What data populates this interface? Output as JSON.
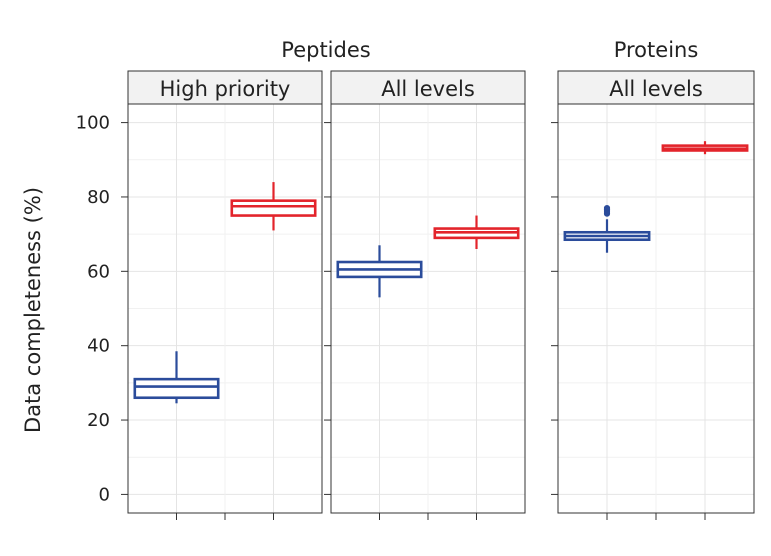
{
  "chart_data": {
    "type": "boxplot",
    "ylabel": "Data completeness (%)",
    "ylim": [
      -5,
      105
    ],
    "yticks": [
      0,
      20,
      40,
      60,
      80,
      100
    ],
    "grid": true,
    "colors": {
      "blue": "#2b4c9b",
      "red": "#e3242b"
    },
    "groups": [
      {
        "title": "Peptides",
        "panels": [
          "High priority",
          "All levels"
        ]
      },
      {
        "title": "Proteins",
        "panels": [
          "All levels"
        ]
      }
    ],
    "panels": [
      {
        "strip": "High priority",
        "boxes": [
          {
            "color": "blue",
            "min": 24.5,
            "q1": 26,
            "median": 29,
            "q3": 31,
            "max": 38.5,
            "outliers": []
          },
          {
            "color": "red",
            "min": 71,
            "q1": 75,
            "median": 77.5,
            "q3": 79,
            "max": 84,
            "outliers": []
          }
        ]
      },
      {
        "strip": "All levels",
        "boxes": [
          {
            "color": "blue",
            "min": 53,
            "q1": 58.5,
            "median": 60.5,
            "q3": 62.5,
            "max": 67,
            "outliers": []
          },
          {
            "color": "red",
            "min": 66,
            "q1": 69,
            "median": 70.5,
            "q3": 71.5,
            "max": 75,
            "outliers": []
          }
        ]
      },
      {
        "strip": "All levels",
        "boxes": [
          {
            "color": "blue",
            "min": 65,
            "q1": 68.5,
            "median": 69.5,
            "q3": 70.5,
            "max": 74,
            "outliers": [
              75.5,
              76,
              76.5,
              77
            ]
          },
          {
            "color": "red",
            "min": 91.5,
            "q1": 92.5,
            "median": 93,
            "q3": 93.8,
            "max": 95,
            "outliers": []
          }
        ]
      }
    ]
  }
}
